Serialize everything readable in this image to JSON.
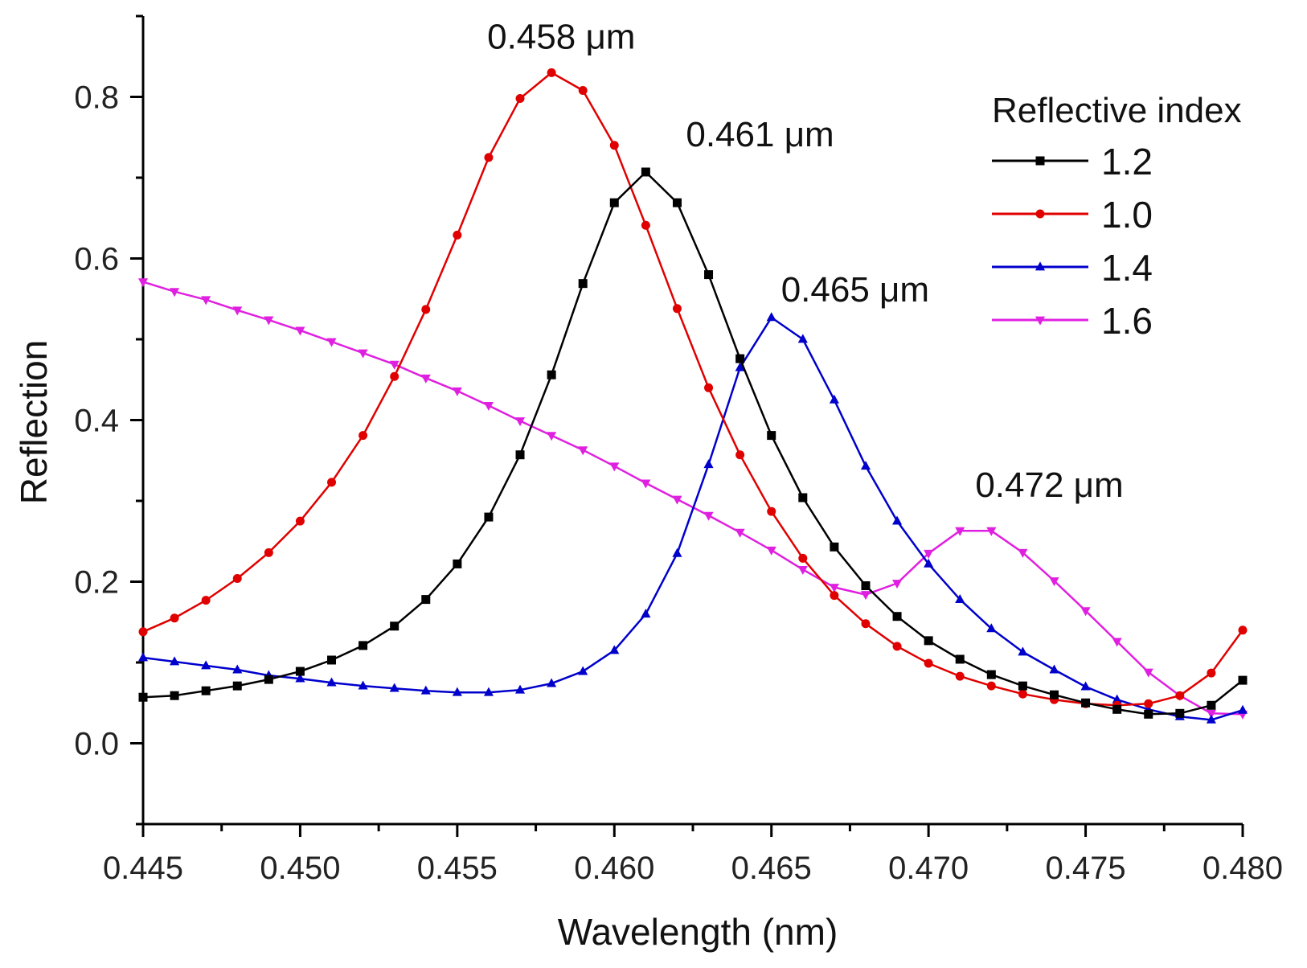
{
  "chart_data": {
    "type": "line",
    "xlabel": "Wavelength (nm)",
    "ylabel": "Reflection",
    "xlim": [
      0.445,
      0.48
    ],
    "ylim": [
      -0.1,
      0.9
    ],
    "xticks": [
      "0.445",
      "0.450",
      "0.455",
      "0.460",
      "0.465",
      "0.470",
      "0.475",
      "0.480"
    ],
    "yticks": [
      "0.0",
      "0.2",
      "0.4",
      "0.6",
      "0.8"
    ],
    "grid": false,
    "legend_title": "Reflective index",
    "legend_position": "top-right",
    "x": [
      0.445,
      0.446,
      0.447,
      0.448,
      0.449,
      0.45,
      0.451,
      0.452,
      0.453,
      0.454,
      0.455,
      0.456,
      0.457,
      0.458,
      0.459,
      0.46,
      0.461,
      0.462,
      0.463,
      0.464,
      0.465,
      0.466,
      0.467,
      0.468,
      0.469,
      0.47,
      0.471,
      0.472,
      0.473,
      0.474,
      0.475,
      0.476,
      0.477,
      0.478,
      0.479,
      0.48
    ],
    "series": [
      {
        "name": "1.2",
        "color": "#000000",
        "marker": "square",
        "values": [
          0.057,
          0.059,
          0.065,
          0.071,
          0.079,
          0.089,
          0.103,
          0.121,
          0.145,
          0.178,
          0.222,
          0.28,
          0.357,
          0.456,
          0.569,
          0.669,
          0.707,
          0.669,
          0.58,
          0.476,
          0.381,
          0.304,
          0.243,
          0.195,
          0.157,
          0.127,
          0.104,
          0.085,
          0.071,
          0.06,
          0.05,
          0.042,
          0.036,
          0.037,
          0.047,
          0.078
        ]
      },
      {
        "name": "1.0",
        "color": "#e00000",
        "marker": "circle",
        "values": [
          0.138,
          0.155,
          0.177,
          0.204,
          0.236,
          0.275,
          0.323,
          0.381,
          0.454,
          0.537,
          0.629,
          0.725,
          0.798,
          0.83,
          0.808,
          0.74,
          0.641,
          0.538,
          0.44,
          0.357,
          0.287,
          0.229,
          0.183,
          0.148,
          0.12,
          0.099,
          0.083,
          0.071,
          0.061,
          0.054,
          0.049,
          0.047,
          0.049,
          0.059,
          0.087,
          0.14
        ]
      },
      {
        "name": "1.4",
        "color": "#0000cc",
        "marker": "triangle-up",
        "values": [
          0.106,
          0.101,
          0.096,
          0.091,
          0.084,
          0.08,
          0.075,
          0.071,
          0.068,
          0.065,
          0.063,
          0.063,
          0.066,
          0.074,
          0.089,
          0.115,
          0.16,
          0.235,
          0.345,
          0.465,
          0.527,
          0.5,
          0.425,
          0.343,
          0.275,
          0.222,
          0.178,
          0.142,
          0.113,
          0.091,
          0.07,
          0.054,
          0.042,
          0.033,
          0.029,
          0.041
        ]
      },
      {
        "name": "1.6",
        "color": "#e020e0",
        "marker": "triangle-down",
        "values": [
          0.571,
          0.559,
          0.549,
          0.536,
          0.524,
          0.511,
          0.497,
          0.483,
          0.469,
          0.452,
          0.436,
          0.418,
          0.399,
          0.381,
          0.363,
          0.343,
          0.322,
          0.302,
          0.282,
          0.261,
          0.239,
          0.215,
          0.193,
          0.184,
          0.198,
          0.235,
          0.263,
          0.263,
          0.236,
          0.201,
          0.164,
          0.126,
          0.088,
          0.059,
          0.037,
          0.036
        ]
      }
    ],
    "annotations": [
      {
        "text": "0.458 μm",
        "x": 0.458,
        "y": 0.83
      },
      {
        "text": "0.461 μm",
        "x": 0.461,
        "y": 0.707
      },
      {
        "text": "0.465 μm",
        "x": 0.465,
        "y": 0.527
      },
      {
        "text": "0.472 μm",
        "x": 0.472,
        "y": 0.263
      }
    ]
  }
}
